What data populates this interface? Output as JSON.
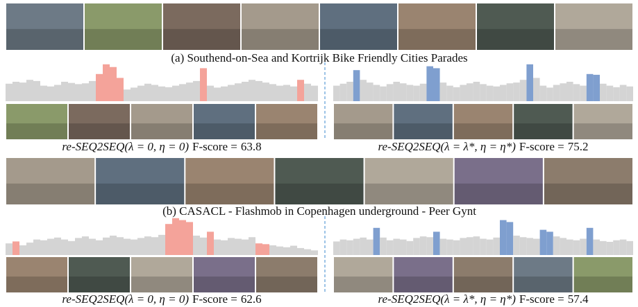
{
  "ylim": [
    0,
    100
  ],
  "base_color": "#d4d4d4",
  "panels": [
    {
      "title": "(a) Southend-on-Sea and Kortrijk Bike Friendly Cities Parades",
      "results": [
        {
          "method": "re-SEQ2SEQ(λ = 0, η = 0)",
          "metric": "F-score =",
          "score": 63.8,
          "color": "#f4a39a",
          "scores": [
            45,
            50,
            48,
            55,
            52,
            40,
            38,
            42,
            50,
            47,
            44,
            46,
            52,
            70,
            95,
            88,
            60,
            30,
            35,
            40,
            45,
            42,
            38,
            36,
            40,
            44,
            48,
            52,
            85,
            40,
            35,
            38,
            42,
            46,
            50,
            55,
            52,
            48,
            44,
            40,
            42,
            38,
            55,
            45,
            40
          ],
          "highlight": [
            13,
            14,
            15,
            16,
            28,
            42
          ]
        },
        {
          "method": "re-SEQ2SEQ(λ = λ*, η = η*)",
          "metric": "F-score =",
          "score": 75.2,
          "color": "#7f9fcf",
          "scores": [
            40,
            45,
            50,
            80,
            55,
            48,
            42,
            38,
            44,
            50,
            46,
            42,
            40,
            45,
            90,
            85,
            48,
            40,
            36,
            42,
            46,
            50,
            44,
            40,
            38,
            42,
            46,
            48,
            55,
            95,
            60,
            40,
            35,
            42,
            46,
            50,
            44,
            40,
            70,
            68,
            45,
            40,
            36,
            42,
            38
          ],
          "highlight": [
            3,
            14,
            15,
            29,
            38,
            39
          ]
        }
      ]
    },
    {
      "title": "(b) CASACL - Flashmob in Copenhagen underground - Peer Gynt",
      "results": [
        {
          "method": "re-SEQ2SEQ(λ = 0, η = 0)",
          "metric": "F-score =",
          "score": 62.6,
          "color": "#f4a39a",
          "scores": [
            30,
            35,
            25,
            32,
            40,
            38,
            42,
            45,
            40,
            36,
            44,
            48,
            42,
            38,
            45,
            50,
            46,
            42,
            40,
            44,
            48,
            46,
            52,
            80,
            95,
            90,
            85,
            50,
            45,
            60,
            40,
            38,
            44,
            42,
            40,
            46,
            30,
            28,
            25,
            22,
            20,
            24,
            18,
            15,
            12
          ],
          "highlight": [
            1,
            23,
            24,
            25,
            26,
            29,
            36,
            37
          ]
        },
        {
          "method": "re-SEQ2SEQ(λ = λ*, η = η*)",
          "metric": "F-score =",
          "score": 57.4,
          "color": "#7f9fcf",
          "scores": [
            35,
            40,
            38,
            42,
            45,
            40,
            70,
            45,
            38,
            42,
            40,
            36,
            44,
            48,
            46,
            60,
            42,
            40,
            38,
            44,
            46,
            48,
            42,
            40,
            45,
            90,
            85,
            50,
            46,
            44,
            42,
            65,
            60,
            48,
            44,
            40,
            38,
            42,
            70,
            40,
            36,
            34,
            38,
            40,
            36
          ],
          "highlight": [
            6,
            15,
            25,
            26,
            31,
            32,
            38
          ]
        }
      ]
    }
  ]
}
